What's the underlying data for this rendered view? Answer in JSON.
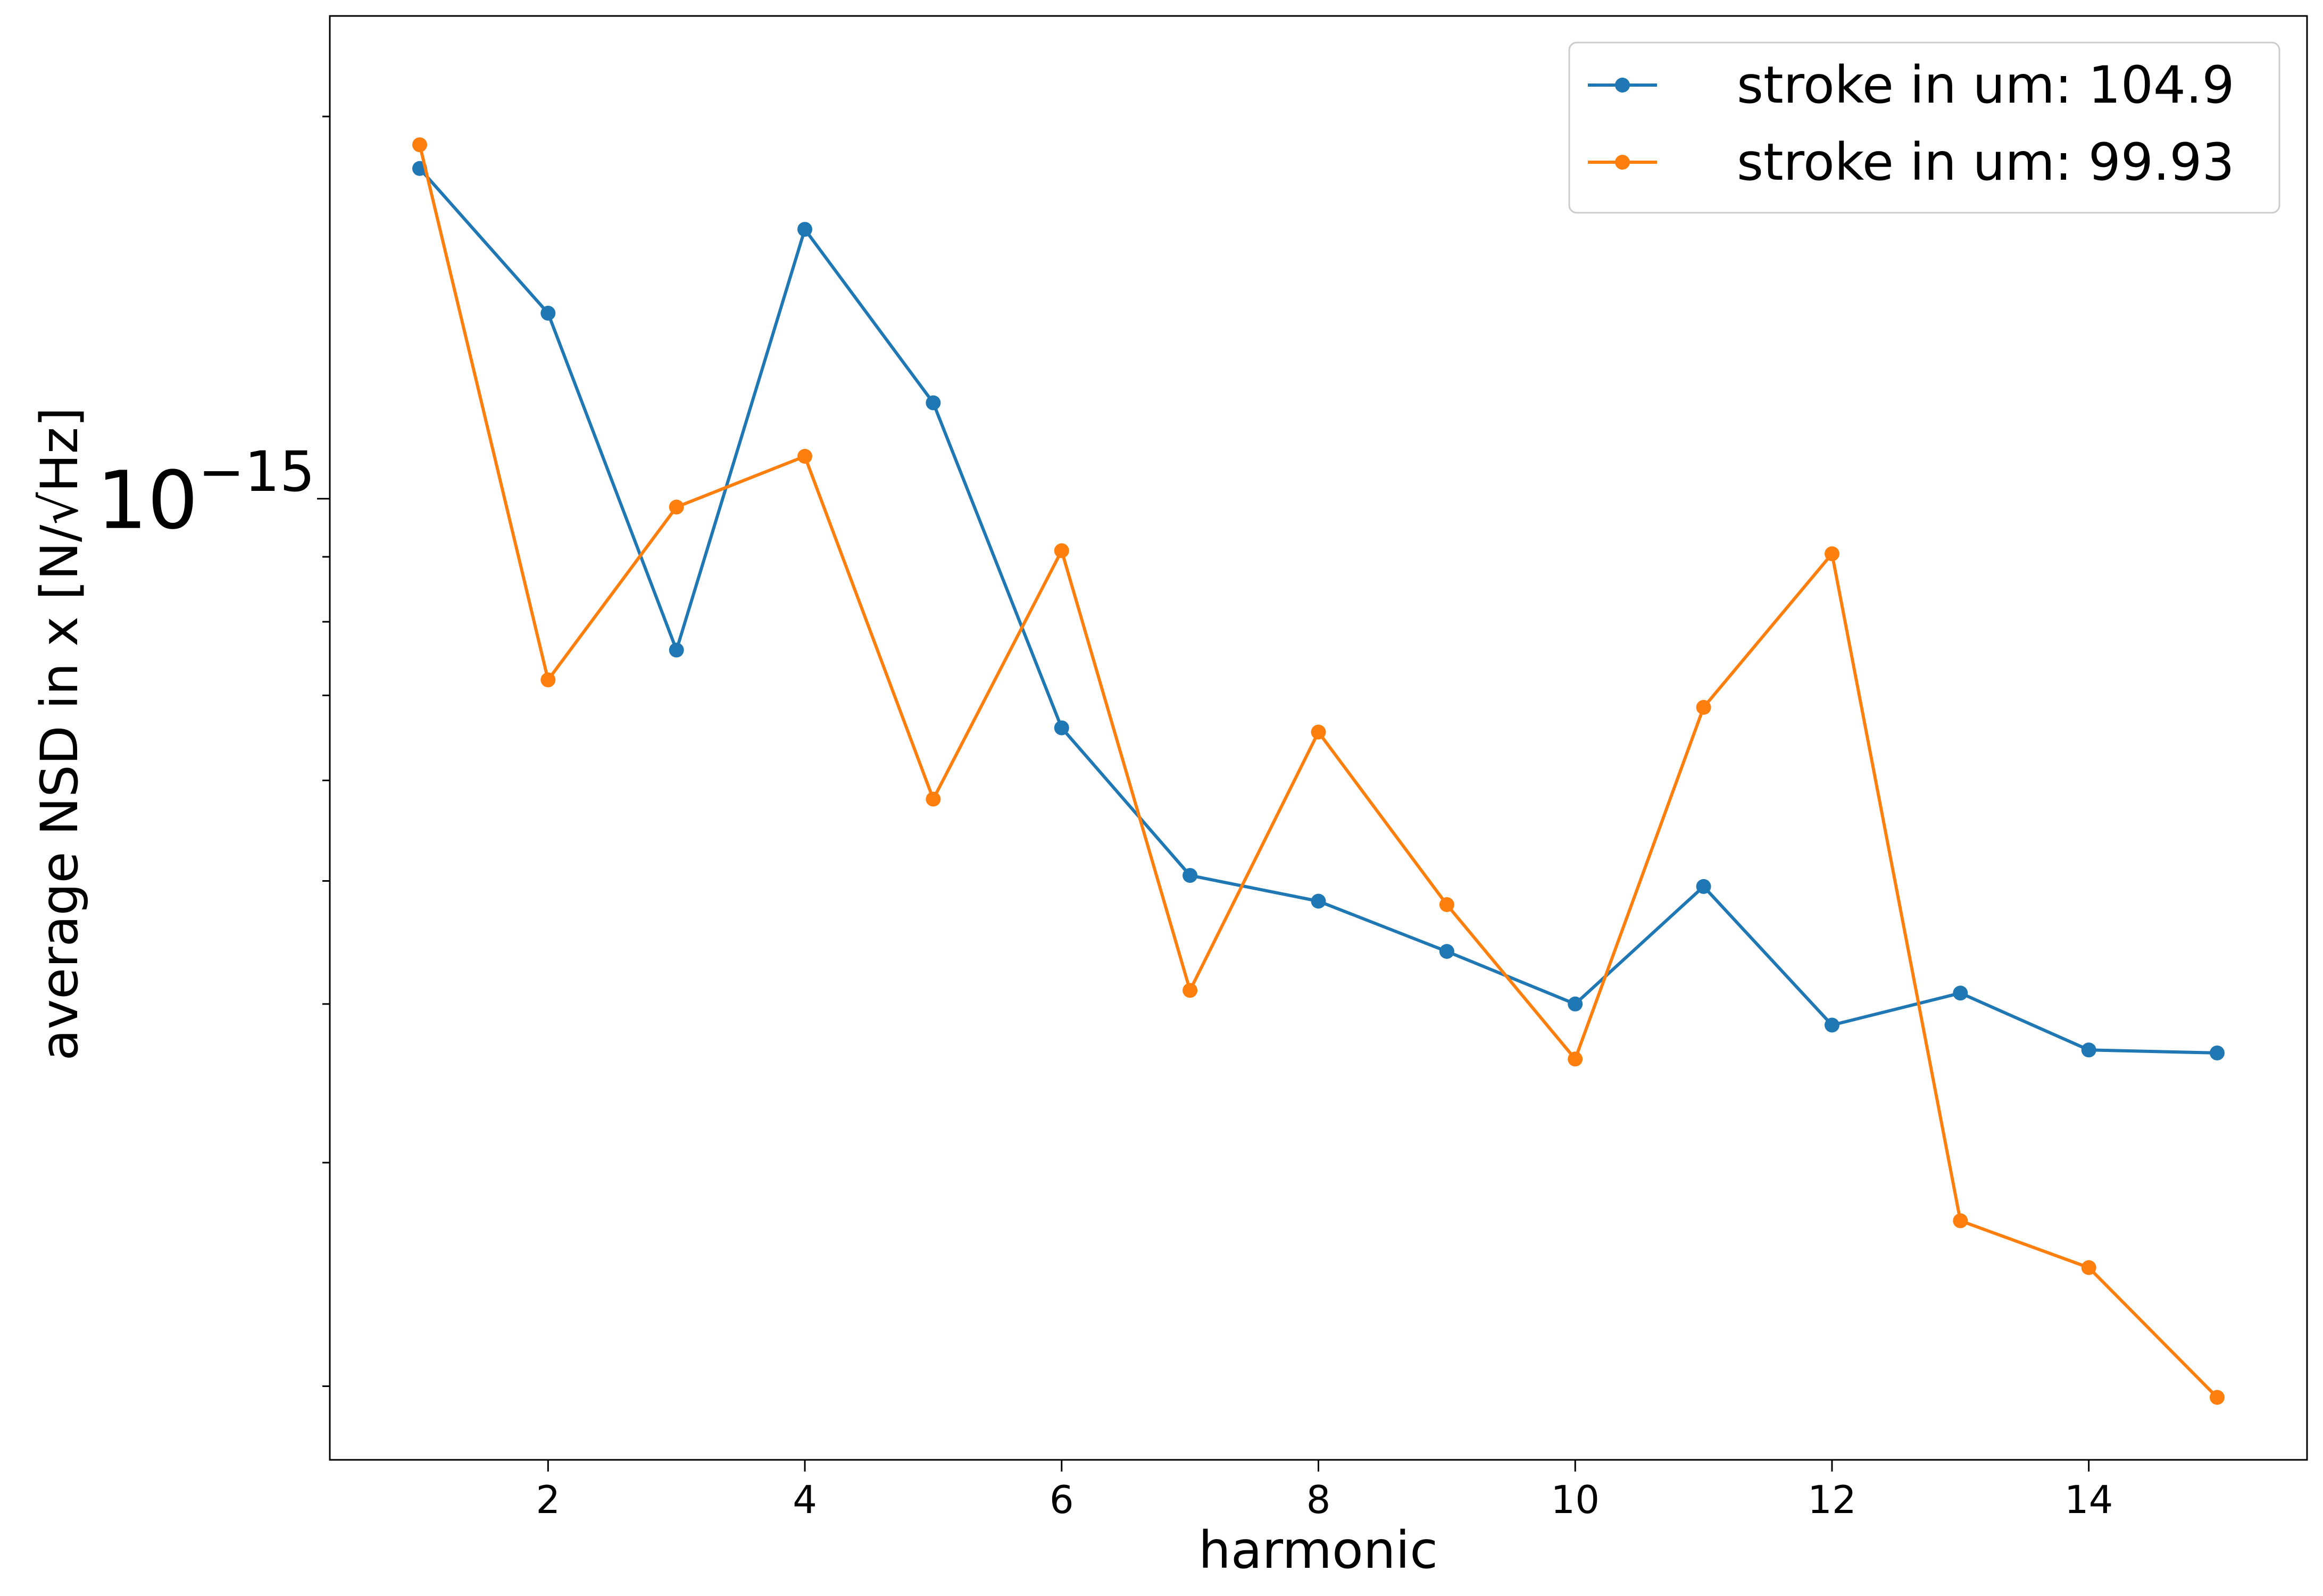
{
  "chart_data": {
    "type": "line",
    "x": [
      1,
      2,
      3,
      4,
      5,
      6,
      7,
      8,
      9,
      10,
      11,
      12,
      13,
      14,
      15
    ],
    "series": [
      {
        "name": "stroke in um: 104.9",
        "color": "#1f77b4",
        "values": [
          1.82e-15,
          1.4e-15,
          7.6e-16,
          1.63e-15,
          1.19e-15,
          6.6e-16,
          5.05e-16,
          4.82e-16,
          4.4e-16,
          4e-16,
          4.95e-16,
          3.85e-16,
          4.08e-16,
          3.68e-16,
          3.66e-16
        ]
      },
      {
        "name": "stroke in um: 99.93",
        "color": "#ff7f0e",
        "values": [
          1.9e-15,
          7.2e-16,
          9.85e-16,
          1.08e-15,
          5.8e-16,
          9.1e-16,
          4.1e-16,
          6.55e-16,
          4.79e-16,
          3.62e-16,
          6.85e-16,
          9.05e-16,
          2.7e-16,
          2.48e-16,
          1.96e-16
        ]
      }
    ],
    "xlabel": "harmonic",
    "ylabel": "average NSD in x [N/√Hz]",
    "y_scale": "log",
    "xlim": [
      0.3,
      15.7
    ],
    "ylim": [
      1.75e-16,
      2.4e-15
    ],
    "x_ticks": [
      2,
      4,
      6,
      8,
      10,
      12,
      14
    ],
    "x_tick_labels": [
      "2",
      "4",
      "6",
      "8",
      "10",
      "12",
      "14"
    ],
    "y_major_ticks": [
      1e-15
    ],
    "y_major_tick_labels": [
      {
        "base": "10",
        "exponent": "−15"
      }
    ],
    "y_minor_ticks": [
      2e-16,
      3e-16,
      4e-16,
      5e-16,
      6e-16,
      7e-16,
      8e-16,
      9e-16,
      2e-15
    ],
    "grid": false,
    "legend": "top-right"
  }
}
